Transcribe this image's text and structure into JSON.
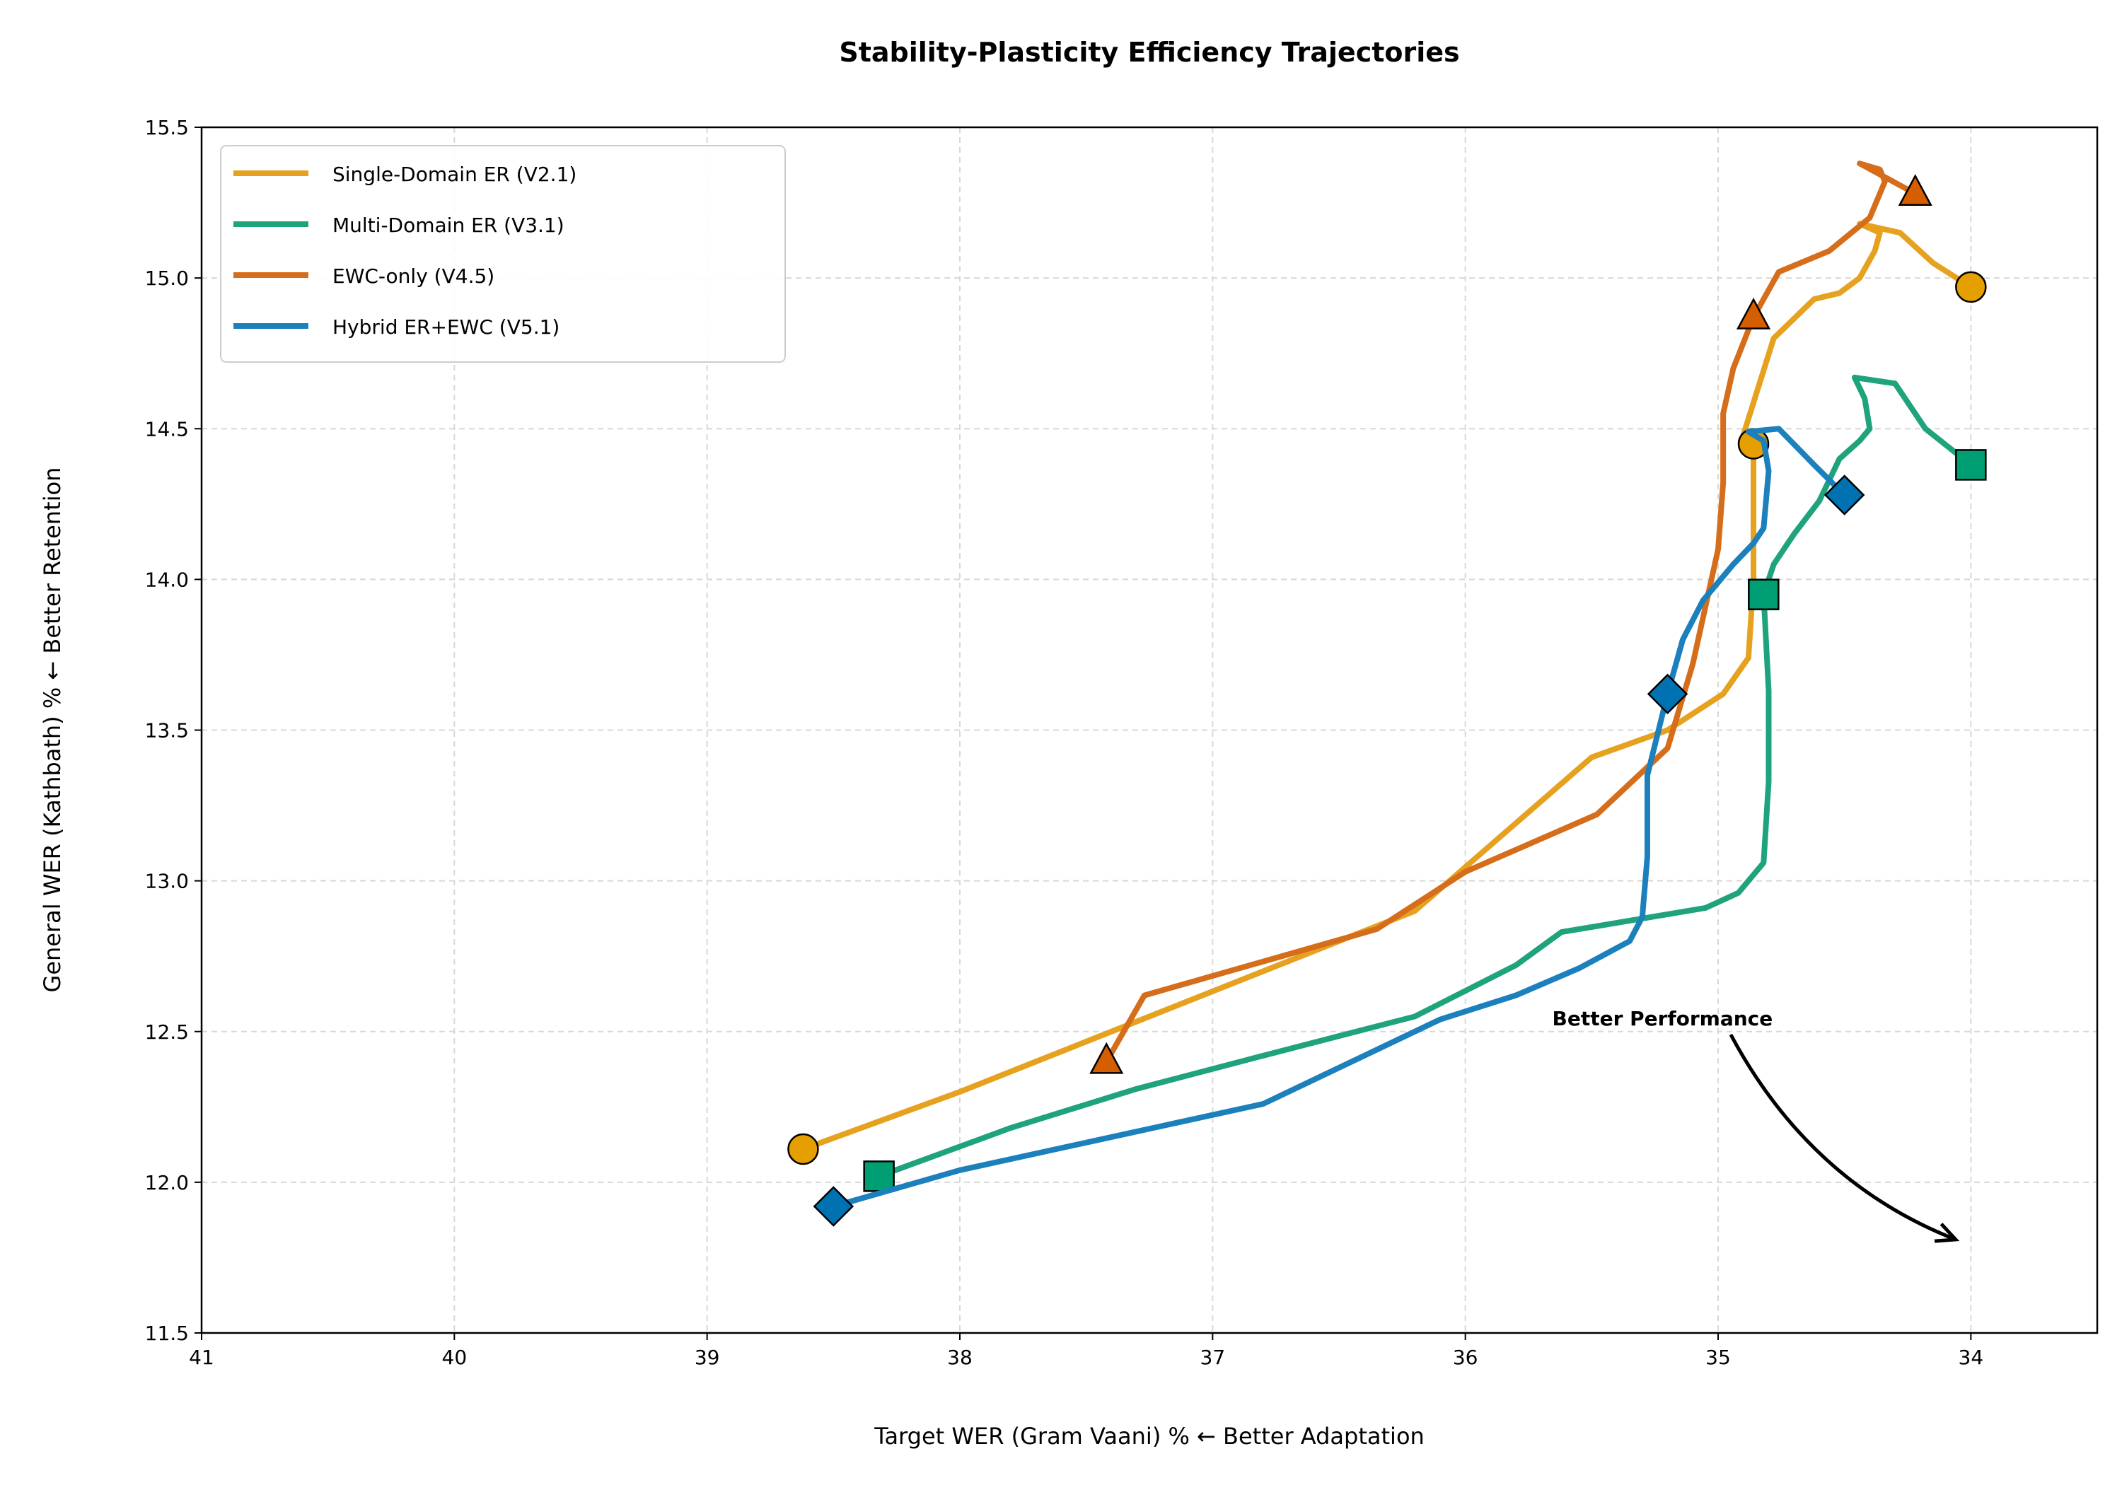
{
  "chart_data": {
    "type": "line",
    "title": "Stability-Plasticity Efficiency Trajectories",
    "xlabel": "Target WER (Gram Vaani) % ← Better Adaptation",
    "ylabel": "General WER (Kathbath) % ← Better Retention",
    "xlim": [
      41,
      33.5
    ],
    "ylim": [
      11.5,
      15.5
    ],
    "x_inverted": true,
    "grid": true,
    "legend_position": "top-left",
    "xticks": [
      41,
      40,
      39,
      38,
      37,
      36,
      35,
      34
    ],
    "yticks": [
      11.5,
      12.0,
      12.5,
      13.0,
      13.5,
      14.0,
      14.5,
      15.0,
      15.5
    ],
    "xtick_labels": [
      "41",
      "40",
      "39",
      "38",
      "37",
      "36",
      "35",
      "34"
    ],
    "ytick_labels": [
      "11.5",
      "12.0",
      "12.5",
      "13.0",
      "13.5",
      "14.0",
      "14.5",
      "15.0",
      "15.5"
    ],
    "series": [
      {
        "name": "Single-Domain ER (V2.1)",
        "color": "#E6A11E",
        "marker_color": "#E69F00",
        "marker": "circle",
        "x": [
          38.62,
          38.0,
          37.4,
          36.8,
          36.2,
          35.5,
          35.2,
          34.98,
          34.88,
          34.86,
          34.86,
          34.86,
          34.9,
          34.78,
          34.62,
          34.52,
          34.44,
          34.38,
          34.36,
          34.44,
          34.28,
          34.15,
          34.0
        ],
        "y": [
          12.11,
          12.3,
          12.5,
          12.7,
          12.9,
          13.41,
          13.5,
          13.62,
          13.74,
          14.0,
          14.2,
          14.45,
          14.48,
          14.8,
          14.93,
          14.95,
          15.0,
          15.09,
          15.15,
          15.18,
          15.15,
          15.05,
          14.97
        ],
        "marker_indices": [
          0,
          11,
          22
        ]
      },
      {
        "name": "Multi-Domain ER (V3.1)",
        "color": "#1FA37D",
        "marker_color": "#009E73",
        "marker": "square",
        "x": [
          38.32,
          37.8,
          37.3,
          36.8,
          36.2,
          35.8,
          35.62,
          35.05,
          34.92,
          34.82,
          34.8,
          34.8,
          34.82,
          34.78,
          34.7,
          34.6,
          34.52,
          34.44,
          34.4,
          34.42,
          34.46,
          34.3,
          34.18,
          34.0
        ],
        "y": [
          12.02,
          12.18,
          12.31,
          12.42,
          12.55,
          12.72,
          12.83,
          12.91,
          12.96,
          13.06,
          13.33,
          13.63,
          13.95,
          14.05,
          14.15,
          14.26,
          14.4,
          14.46,
          14.5,
          14.6,
          14.67,
          14.65,
          14.5,
          14.38
        ],
        "marker_indices": [
          0,
          12,
          23
        ]
      },
      {
        "name": "EWC-only (V4.5)",
        "color": "#D56D1A",
        "marker_color": "#D55E00",
        "marker": "triangle",
        "x": [
          37.42,
          37.27,
          36.35,
          36.0,
          35.48,
          35.2,
          35.1,
          35.0,
          34.98,
          34.98,
          34.94,
          34.86,
          34.76,
          34.56,
          34.4,
          34.34,
          34.36,
          34.44,
          34.22
        ],
        "y": [
          12.4,
          12.62,
          12.84,
          13.03,
          13.22,
          13.44,
          13.72,
          14.1,
          14.32,
          14.55,
          14.7,
          14.87,
          15.02,
          15.09,
          15.2,
          15.32,
          15.36,
          15.38,
          15.28
        ],
        "marker_indices": [
          0,
          11,
          18
        ]
      },
      {
        "name": "Hybrid ER+EWC (V5.1)",
        "color": "#1C80BC",
        "marker_color": "#0072B2",
        "marker": "diamond",
        "x": [
          38.5,
          38.0,
          37.4,
          36.8,
          36.4,
          36.1,
          35.8,
          35.55,
          35.35,
          35.3,
          35.28,
          35.28,
          35.2,
          35.14,
          35.06,
          34.94,
          34.86,
          34.82,
          34.8,
          34.82,
          34.88,
          34.76,
          34.62,
          34.5
        ],
        "y": [
          11.92,
          12.04,
          12.15,
          12.26,
          12.42,
          12.54,
          12.62,
          12.71,
          12.8,
          12.88,
          13.08,
          13.35,
          13.62,
          13.8,
          13.93,
          14.05,
          14.12,
          14.17,
          14.36,
          14.46,
          14.49,
          14.5,
          14.38,
          14.28
        ],
        "marker_indices": [
          0,
          12,
          23
        ]
      }
    ],
    "annotations": [
      {
        "text": "Better Performance",
        "text_at": [
          35.22,
          12.52
        ],
        "arrow_from": [
          34.95,
          12.49
        ],
        "arrow_to": [
          34.06,
          11.81
        ]
      }
    ]
  }
}
